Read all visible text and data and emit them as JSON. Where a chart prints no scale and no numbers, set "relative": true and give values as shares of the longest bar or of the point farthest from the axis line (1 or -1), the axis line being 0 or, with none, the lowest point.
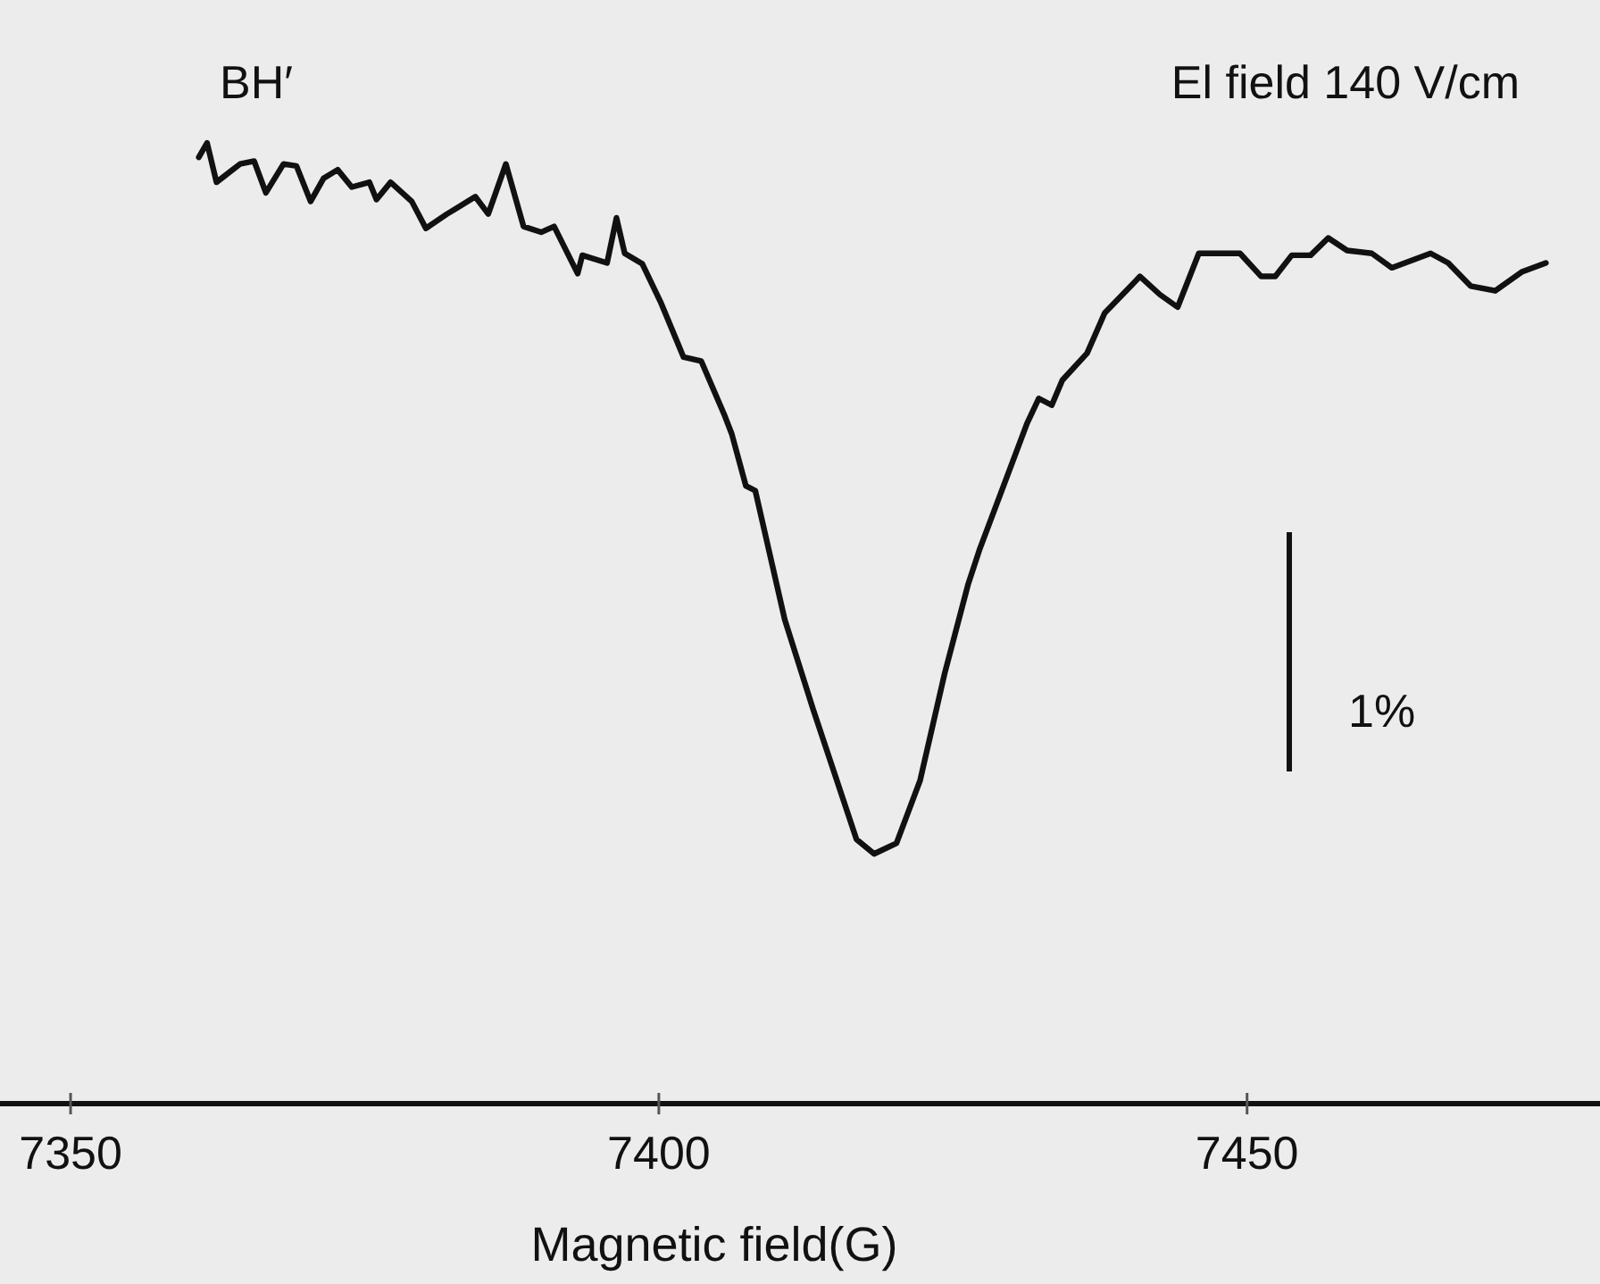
{
  "chart_data": {
    "type": "line",
    "relative": true,
    "xlabel": "Magnetic  field(G)",
    "xlim": [
      7344,
      7480
    ],
    "xticks": [
      7350,
      7400,
      7450
    ],
    "annotations": [
      "BH′",
      "El field 140 V/cm",
      "1%"
    ],
    "series": [
      {
        "color": "#111111",
        "x": [
          7360.9,
          7361.6,
          7362.4,
          7364.4,
          7365.6,
          7366.6,
          7368.1,
          7369.2,
          7370.4,
          7371.5,
          7372.7,
          7373.9,
          7375.4,
          7376.0,
          7377.2,
          7379.0,
          7380.2,
          7382.0,
          7384.4,
          7385.5,
          7387.0,
          7388.5,
          7390.0,
          7391.1,
          7393.1,
          7393.5,
          7395.6,
          7396.4,
          7397.1,
          7398.6,
          7400.2,
          7402.1,
          7403.6,
          7405.6,
          7406.2,
          7407.4,
          7408.2,
          7410.7,
          7413.1,
          7416.8,
          7418.3,
          7420.2,
          7422.2,
          7424.3,
          7426.3,
          7427.3,
          7431.3,
          7432.3,
          7433.4,
          7434.3,
          7436.4,
          7437.9,
          7440.9,
          7442.6,
          7444.1,
          7445.9,
          7448.5,
          7449.4,
          7451.2,
          7452.4,
          7453.8,
          7455.4,
          7456.9,
          7458.5,
          7460.6,
          7462.3,
          7465.6,
          7467.1,
          7469.0,
          7471.1,
          7473.4,
          7475.4
        ],
        "values": [
          0.985,
          1.0,
          0.959,
          0.978,
          0.981,
          0.948,
          0.978,
          0.976,
          0.939,
          0.963,
          0.972,
          0.954,
          0.959,
          0.941,
          0.959,
          0.939,
          0.911,
          0.926,
          0.944,
          0.926,
          0.978,
          0.913,
          0.907,
          0.913,
          0.864,
          0.883,
          0.875,
          0.922,
          0.885,
          0.874,
          0.833,
          0.777,
          0.773,
          0.716,
          0.697,
          0.643,
          0.638,
          0.504,
          0.411,
          0.275,
          0.26,
          0.271,
          0.336,
          0.448,
          0.541,
          0.578,
          0.708,
          0.734,
          0.727,
          0.753,
          0.781,
          0.823,
          0.861,
          0.842,
          0.829,
          0.885,
          0.885,
          0.885,
          0.861,
          0.861,
          0.883,
          0.883,
          0.901,
          0.888,
          0.885,
          0.87,
          0.885,
          0.875,
          0.851,
          0.846,
          0.866,
          0.875
        ]
      }
    ]
  }
}
